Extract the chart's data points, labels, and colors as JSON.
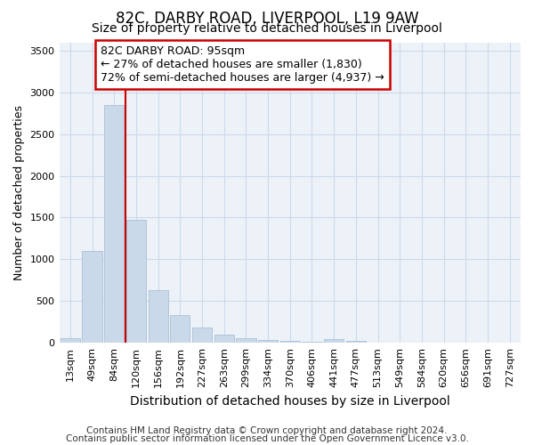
{
  "title": "82C, DARBY ROAD, LIVERPOOL, L19 9AW",
  "subtitle": "Size of property relative to detached houses in Liverpool",
  "xlabel": "Distribution of detached houses by size in Liverpool",
  "ylabel": "Number of detached properties",
  "categories": [
    "13sqm",
    "49sqm",
    "84sqm",
    "120sqm",
    "156sqm",
    "192sqm",
    "227sqm",
    "263sqm",
    "299sqm",
    "334sqm",
    "370sqm",
    "406sqm",
    "441sqm",
    "477sqm",
    "513sqm",
    "549sqm",
    "584sqm",
    "620sqm",
    "656sqm",
    "691sqm",
    "727sqm"
  ],
  "values": [
    50,
    1100,
    2850,
    1470,
    630,
    330,
    185,
    95,
    55,
    35,
    22,
    15,
    45,
    25,
    5,
    3,
    2,
    1,
    1,
    1,
    1
  ],
  "bar_color": "#c9d9ea",
  "bar_edgecolor": "#aabfd4",
  "vline_x": 2.5,
  "vline_color": "#cc0000",
  "annotation_text": "82C DARBY ROAD: 95sqm\n← 27% of detached houses are smaller (1,830)\n72% of semi-detached houses are larger (4,937) →",
  "annotation_box_facecolor": "#ffffff",
  "annotation_box_edgecolor": "#cc0000",
  "ylim": [
    0,
    3600
  ],
  "yticks": [
    0,
    500,
    1000,
    1500,
    2000,
    2500,
    3000,
    3500
  ],
  "grid_color": "#ccdaea",
  "background_color": "#edf2f8",
  "footer_line1": "Contains HM Land Registry data © Crown copyright and database right 2024.",
  "footer_line2": "Contains public sector information licensed under the Open Government Licence v3.0.",
  "title_fontsize": 12,
  "subtitle_fontsize": 10,
  "xlabel_fontsize": 10,
  "ylabel_fontsize": 9,
  "tick_fontsize": 8,
  "annotation_fontsize": 9,
  "footer_fontsize": 7.5
}
